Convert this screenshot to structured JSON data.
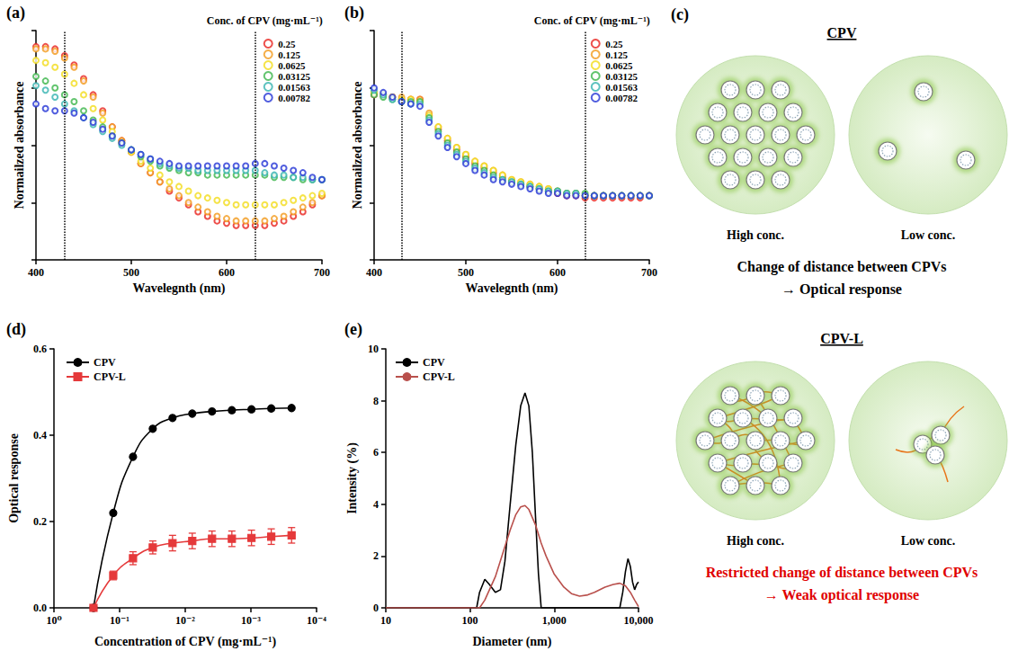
{
  "chart_data": [
    {
      "panel": "(a)",
      "type": "scatter",
      "marker": "open-circle",
      "grid": false,
      "tick_labels": "x",
      "x_label": "Wavelegnth (nm)",
      "y_label": "Normailzed absorbance",
      "legend": "upper right",
      "legend_title": "Conc. of CPV (mg·mL⁻¹)",
      "xlim": [
        400,
        700
      ],
      "xticks": [
        400,
        500,
        600,
        700
      ],
      "ylim": [
        0,
        1
      ],
      "yticks": [
        0,
        0.25,
        0.5,
        0.75,
        1
      ],
      "vlines": [
        430,
        630
      ],
      "x": [
        400,
        410,
        420,
        430,
        440,
        450,
        460,
        470,
        480,
        490,
        500,
        510,
        520,
        530,
        540,
        550,
        560,
        570,
        580,
        590,
        600,
        610,
        620,
        630,
        640,
        650,
        660,
        670,
        680,
        690,
        700
      ],
      "series": [
        {
          "name": "0.25",
          "color": "#e8231e",
          "values": [
            0.93,
            0.93,
            0.92,
            0.89,
            0.85,
            0.79,
            0.72,
            0.65,
            0.58,
            0.52,
            0.47,
            0.42,
            0.38,
            0.34,
            0.3,
            0.27,
            0.24,
            0.21,
            0.19,
            0.17,
            0.16,
            0.15,
            0.15,
            0.15,
            0.15,
            0.16,
            0.17,
            0.19,
            0.21,
            0.24,
            0.28
          ]
        },
        {
          "name": "0.125",
          "color": "#f39a1c",
          "values": [
            0.92,
            0.92,
            0.91,
            0.88,
            0.84,
            0.78,
            0.71,
            0.64,
            0.58,
            0.52,
            0.47,
            0.42,
            0.38,
            0.34,
            0.31,
            0.28,
            0.25,
            0.23,
            0.21,
            0.19,
            0.18,
            0.17,
            0.17,
            0.17,
            0.17,
            0.18,
            0.19,
            0.21,
            0.23,
            0.25,
            0.28
          ]
        },
        {
          "name": "0.0625",
          "color": "#f2dc1a",
          "values": [
            0.87,
            0.86,
            0.84,
            0.81,
            0.77,
            0.72,
            0.66,
            0.61,
            0.56,
            0.51,
            0.47,
            0.43,
            0.4,
            0.37,
            0.34,
            0.32,
            0.3,
            0.28,
            0.27,
            0.26,
            0.25,
            0.24,
            0.24,
            0.24,
            0.24,
            0.24,
            0.25,
            0.26,
            0.27,
            0.28,
            0.29
          ]
        },
        {
          "name": "0.03125",
          "color": "#3bb54a",
          "values": [
            0.8,
            0.78,
            0.75,
            0.72,
            0.69,
            0.65,
            0.61,
            0.58,
            0.54,
            0.51,
            0.48,
            0.45,
            0.43,
            0.41,
            0.4,
            0.39,
            0.38,
            0.38,
            0.37,
            0.37,
            0.37,
            0.37,
            0.37,
            0.37,
            0.37,
            0.36,
            0.36,
            0.36,
            0.35,
            0.35,
            0.35
          ]
        },
        {
          "name": "0.01563",
          "color": "#35b3b0",
          "values": [
            0.76,
            0.74,
            0.71,
            0.68,
            0.65,
            0.62,
            0.59,
            0.56,
            0.53,
            0.5,
            0.48,
            0.46,
            0.44,
            0.42,
            0.41,
            0.4,
            0.4,
            0.39,
            0.39,
            0.39,
            0.39,
            0.39,
            0.39,
            0.39,
            0.38,
            0.37,
            0.37,
            0.36,
            0.36,
            0.35,
            0.35
          ]
        },
        {
          "name": "0.00782",
          "color": "#2435d6",
          "values": [
            0.68,
            0.66,
            0.65,
            0.65,
            0.64,
            0.62,
            0.6,
            0.57,
            0.54,
            0.51,
            0.48,
            0.46,
            0.44,
            0.43,
            0.42,
            0.41,
            0.41,
            0.41,
            0.41,
            0.41,
            0.41,
            0.41,
            0.41,
            0.42,
            0.42,
            0.41,
            0.4,
            0.39,
            0.38,
            0.36,
            0.35
          ]
        }
      ]
    },
    {
      "panel": "(b)",
      "type": "scatter",
      "marker": "open-circle",
      "grid": false,
      "tick_labels": "x",
      "x_label": "Wavelegnth (nm)",
      "y_label": "Normailzed absorbance",
      "legend": "upper right",
      "legend_title": "Conc. of CPV (mg·mL⁻¹)",
      "xlim": [
        400,
        700
      ],
      "xticks": [
        400,
        500,
        600,
        700
      ],
      "ylim": [
        0,
        1
      ],
      "yticks": [
        0,
        0.25,
        0.5,
        0.75,
        1
      ],
      "vlines": [
        430,
        630
      ],
      "x": [
        400,
        410,
        420,
        430,
        440,
        450,
        460,
        470,
        480,
        490,
        500,
        510,
        520,
        530,
        540,
        550,
        560,
        570,
        580,
        590,
        600,
        610,
        620,
        630,
        640,
        650,
        660,
        670,
        680,
        690,
        700
      ],
      "series": [
        {
          "name": "0.25",
          "color": "#e8231e",
          "values": [
            0.72,
            0.72,
            0.71,
            0.7,
            0.7,
            0.7,
            0.63,
            0.57,
            0.52,
            0.48,
            0.45,
            0.42,
            0.4,
            0.38,
            0.36,
            0.34,
            0.33,
            0.32,
            0.31,
            0.3,
            0.29,
            0.28,
            0.28,
            0.27,
            0.27,
            0.27,
            0.27,
            0.27,
            0.27,
            0.27,
            0.28
          ]
        },
        {
          "name": "0.125",
          "color": "#f39a1c",
          "values": [
            0.73,
            0.72,
            0.71,
            0.71,
            0.7,
            0.7,
            0.64,
            0.58,
            0.53,
            0.49,
            0.46,
            0.43,
            0.41,
            0.39,
            0.37,
            0.35,
            0.34,
            0.33,
            0.32,
            0.31,
            0.3,
            0.29,
            0.29,
            0.28,
            0.28,
            0.28,
            0.28,
            0.28,
            0.28,
            0.28,
            0.28
          ]
        },
        {
          "name": "0.0625",
          "color": "#f2dc1a",
          "values": [
            0.73,
            0.72,
            0.71,
            0.7,
            0.7,
            0.69,
            0.63,
            0.58,
            0.53,
            0.49,
            0.46,
            0.43,
            0.41,
            0.39,
            0.37,
            0.35,
            0.34,
            0.33,
            0.32,
            0.31,
            0.3,
            0.29,
            0.29,
            0.28,
            0.28,
            0.28,
            0.28,
            0.28,
            0.28,
            0.28,
            0.28
          ]
        },
        {
          "name": "0.03125",
          "color": "#3bb54a",
          "values": [
            0.72,
            0.71,
            0.7,
            0.69,
            0.69,
            0.69,
            0.62,
            0.56,
            0.51,
            0.47,
            0.44,
            0.41,
            0.39,
            0.37,
            0.35,
            0.34,
            0.33,
            0.32,
            0.31,
            0.3,
            0.3,
            0.29,
            0.29,
            0.29,
            0.28,
            0.28,
            0.28,
            0.28,
            0.28,
            0.28,
            0.28
          ]
        },
        {
          "name": "0.01563",
          "color": "#35b3b0",
          "values": [
            0.74,
            0.72,
            0.7,
            0.69,
            0.68,
            0.68,
            0.61,
            0.55,
            0.5,
            0.46,
            0.43,
            0.4,
            0.38,
            0.36,
            0.35,
            0.34,
            0.33,
            0.32,
            0.31,
            0.3,
            0.3,
            0.29,
            0.29,
            0.28,
            0.28,
            0.28,
            0.28,
            0.28,
            0.28,
            0.28,
            0.28
          ]
        },
        {
          "name": "0.00782",
          "color": "#2435d6",
          "values": [
            0.75,
            0.73,
            0.71,
            0.69,
            0.68,
            0.67,
            0.6,
            0.54,
            0.49,
            0.45,
            0.42,
            0.39,
            0.37,
            0.35,
            0.34,
            0.33,
            0.32,
            0.31,
            0.3,
            0.29,
            0.29,
            0.28,
            0.28,
            0.28,
            0.28,
            0.28,
            0.28,
            0.28,
            0.28,
            0.28,
            0.28
          ]
        }
      ]
    },
    {
      "panel": "(d)",
      "type": "line",
      "log": "x",
      "grid": false,
      "line_style": "smooth",
      "x_label": "Concentration of CPV (mg·mL⁻¹)",
      "y_label": "Optical response",
      "legend": "upper left",
      "xlim": [
        1,
        0.0001
      ],
      "xticks": [
        {
          "value": 1,
          "label": "10⁰"
        },
        {
          "value": 0.1,
          "label": "10⁻¹"
        },
        {
          "value": 0.01,
          "label": "10⁻²"
        },
        {
          "value": 0.001,
          "label": "10⁻³"
        },
        {
          "value": 0.0001,
          "label": "10⁻⁴"
        }
      ],
      "ylim": [
        0,
        0.6
      ],
      "yticks": [
        {
          "value": 0,
          "label": "0.0"
        },
        0.2,
        0.4,
        0.6
      ],
      "x": [
        0.25,
        0.125,
        0.0625,
        0.03125,
        0.01563,
        0.00782,
        0.00391,
        0.00195,
        0.00098,
        0.00049,
        0.00024
      ],
      "series": [
        {
          "name": "CPV",
          "color": "#000000",
          "marker": "circle",
          "values": [
            0,
            0.22,
            0.35,
            0.415,
            0.44,
            0.45,
            0.455,
            0.458,
            0.46,
            0.462,
            0.463
          ]
        },
        {
          "name": "CPV-L",
          "color": "#e5393a",
          "marker": "square",
          "values": [
            0,
            0.075,
            0.115,
            0.14,
            0.15,
            0.155,
            0.16,
            0.16,
            0.162,
            0.165,
            0.168
          ],
          "errors": [
            0,
            0.01,
            0.015,
            0.015,
            0.018,
            0.018,
            0.018,
            0.018,
            0.018,
            0.018,
            0.018
          ]
        }
      ]
    },
    {
      "panel": "(e)",
      "type": "line",
      "log": "x",
      "grid": false,
      "marker": "none",
      "line_style": "solid",
      "x_label": "Diameter (nm)",
      "y_label": "Intensity (%)",
      "legend": "upper left",
      "xlim": [
        10,
        10000
      ],
      "xticks": [
        10,
        100,
        {
          "value": 1000,
          "label": "1,000"
        },
        {
          "value": 10000,
          "label": "10,000"
        }
      ],
      "ylim": [
        0,
        10
      ],
      "yticks": [
        0,
        2,
        4,
        6,
        8,
        10
      ],
      "series": [
        {
          "name": "CPV",
          "color": "#000000",
          "x": [
            10,
            100,
            120,
            130,
            150,
            170,
            200,
            230,
            260,
            300,
            350,
            400,
            450,
            500,
            550,
            600,
            650,
            700,
            1000,
            3000,
            5000,
            6000,
            6500,
            7000,
            7500,
            8000,
            8500,
            9000,
            9500,
            10000
          ],
          "values": [
            0,
            0,
            0,
            0.6,
            1.1,
            0.9,
            0.6,
            0.7,
            1.8,
            4.0,
            6.3,
            7.8,
            8.3,
            7.8,
            6.0,
            3.5,
            1.3,
            0,
            0,
            0,
            0,
            0,
            0.6,
            1.4,
            1.9,
            1.6,
            1.0,
            0.7,
            0.9,
            1.0
          ]
        },
        {
          "name": "CPV-L",
          "color": "#b9504c",
          "x": [
            10,
            100,
            130,
            150,
            200,
            250,
            300,
            350,
            400,
            450,
            500,
            600,
            700,
            800,
            1000,
            1300,
            1600,
            2000,
            2500,
            3000,
            4000,
            5000,
            6000,
            7000,
            8000,
            9000,
            10000
          ],
          "values": [
            0,
            0,
            0,
            0.3,
            1.2,
            2.2,
            3.0,
            3.6,
            3.9,
            3.95,
            3.8,
            3.2,
            2.5,
            2.0,
            1.3,
            0.8,
            0.55,
            0.45,
            0.5,
            0.6,
            0.8,
            0.9,
            0.95,
            0.85,
            0.6,
            0.3,
            0.05
          ]
        }
      ]
    }
  ],
  "diagram": {
    "panel": "(c)",
    "sections": [
      {
        "title": "CPV",
        "left_label": "High conc.",
        "right_label": "Low conc.",
        "caption": [
          "Change of distance between CPVs",
          "→ Optical response"
        ],
        "color": "#000000"
      },
      {
        "title": "CPV-L",
        "left_label": "High conc.",
        "right_label": "Low conc.",
        "caption": [
          "Restricted change of distance between CPVs",
          "→ Weak optical response"
        ],
        "color": "#e00000"
      }
    ]
  }
}
